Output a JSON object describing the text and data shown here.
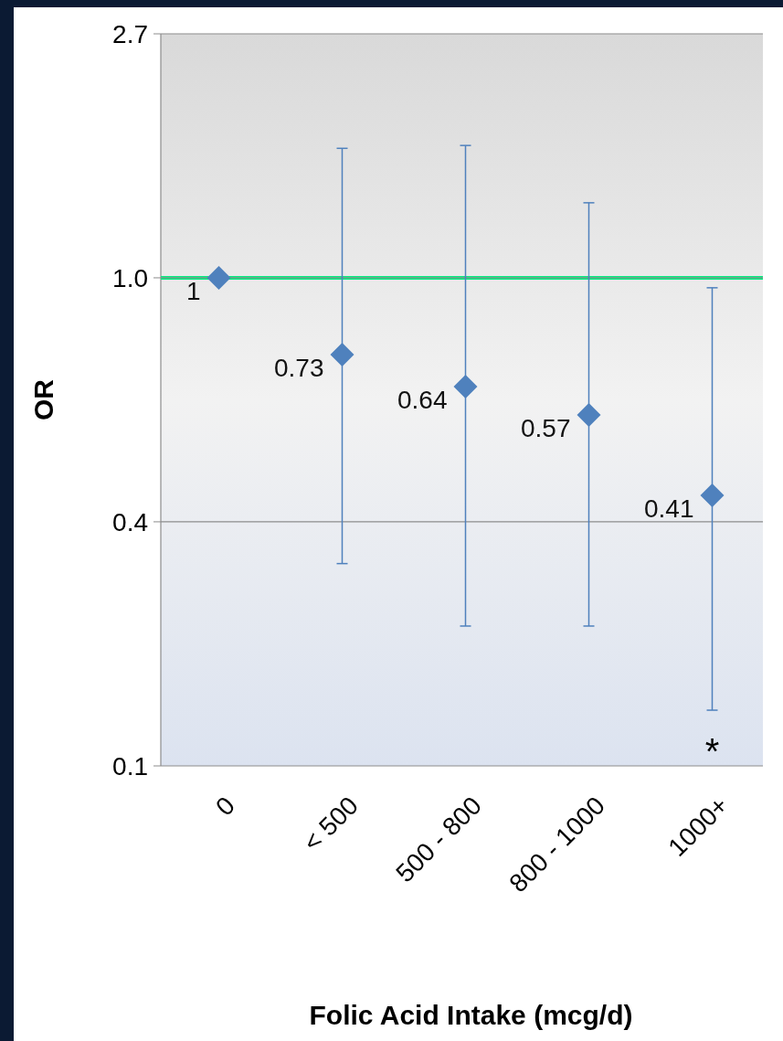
{
  "chart_data": {
    "type": "scatter",
    "xlabel": "Folic Acid Intake (mcg/d)",
    "ylabel": "OR",
    "categories": [
      "0",
      "< 500",
      "500 - 800",
      "800 - 1000",
      "1000+"
    ],
    "series": [
      {
        "color": "#4f81bd",
        "values": [
          1,
          0.73,
          0.64,
          0.57,
          0.41
        ],
        "errors": [
          null,
          [
            0.31,
            1.7
          ],
          [
            0.24,
            1.72
          ],
          [
            0.24,
            1.36
          ],
          [
            0.17,
            0.96
          ]
        ]
      }
    ],
    "log": true,
    "ylim": [
      0.1353,
      2.718
    ],
    "yticks": [
      {
        "value": 0.1353,
        "label": "0.1"
      },
      {
        "value": 0.3679,
        "label": "0.4"
      },
      {
        "value": 1,
        "label": "1.0"
      },
      {
        "value": 2.718,
        "label": "2.7"
      }
    ],
    "grid": "y",
    "marker": "diamond",
    "data_labels": true,
    "ref_lines": [
      {
        "axis": "y",
        "value": 1,
        "color": "#00f080"
      }
    ],
    "annotations": [
      "*"
    ]
  }
}
